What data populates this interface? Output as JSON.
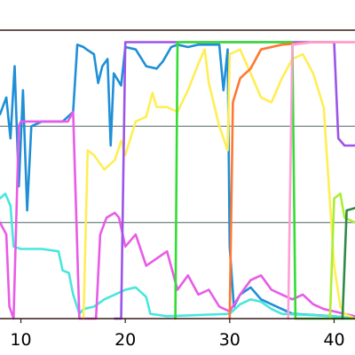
{
  "chart_data": {
    "type": "line",
    "title": "",
    "xlabel": "",
    "ylabel": "",
    "xlim": [
      8,
      42
    ],
    "ylim": [
      0,
      1.2
    ],
    "grid": "horizontal",
    "legend": "none",
    "x_ticks": [
      {
        "value": 10,
        "label": "10"
      },
      {
        "value": 20,
        "label": "20"
      },
      {
        "value": 30,
        "label": "30"
      },
      {
        "value": 40,
        "label": "40"
      }
    ],
    "y_gridlines": [
      0,
      0.4,
      0.8,
      1.2
    ],
    "series": [
      {
        "color": "#1f8fd6",
        "points": [
          [
            8,
            0.85
          ],
          [
            8.6,
            0.92
          ],
          [
            9.0,
            0.75
          ],
          [
            9.4,
            1.05
          ],
          [
            9.8,
            0.55
          ],
          [
            10.2,
            0.95
          ],
          [
            10.6,
            0.45
          ],
          [
            11,
            0.8
          ],
          [
            12,
            0.82
          ],
          [
            14,
            0.82
          ],
          [
            15,
            0.86
          ],
          [
            15.4,
            1.14
          ],
          [
            16.0,
            1.13
          ],
          [
            16.3,
            1.12
          ],
          [
            17,
            1.1
          ],
          [
            17.4,
            0.98
          ],
          [
            17.8,
            1.05
          ],
          [
            18.3,
            1.08
          ],
          [
            18.6,
            0.72
          ],
          [
            18.9,
            1.02
          ],
          [
            19.6,
            0.97
          ],
          [
            20,
            1.13
          ],
          [
            21,
            1.12
          ],
          [
            22,
            1.05
          ],
          [
            23,
            1.04
          ],
          [
            23.6,
            1.07
          ],
          [
            24.4,
            1.13
          ],
          [
            25,
            1.14
          ],
          [
            26,
            1.13
          ],
          [
            27,
            1.14
          ],
          [
            29,
            1.14
          ],
          [
            29.4,
            0.95
          ],
          [
            29.8,
            1.12
          ],
          [
            30,
            0.3
          ],
          [
            30.4,
            0.05
          ],
          [
            31,
            0.1
          ],
          [
            32,
            0.13
          ],
          [
            33,
            0.08
          ],
          [
            34,
            0.06
          ],
          [
            35,
            0.04
          ],
          [
            36,
            0.02
          ],
          [
            40,
            0.01
          ],
          [
            42,
            0
          ]
        ]
      },
      {
        "color": "#49e6dd",
        "points": [
          [
            8,
            0.5
          ],
          [
            8.5,
            0.52
          ],
          [
            9.0,
            0.47
          ],
          [
            9.3,
            0.3
          ],
          [
            10,
            0.29
          ],
          [
            12,
            0.29
          ],
          [
            13.6,
            0.28
          ],
          [
            14.0,
            0.2
          ],
          [
            14.6,
            0.19
          ],
          [
            15,
            0.1
          ],
          [
            15.6,
            0.02
          ],
          [
            16,
            0.04
          ],
          [
            17,
            0.05
          ],
          [
            18,
            0.08
          ],
          [
            19,
            0.1
          ],
          [
            20,
            0.12
          ],
          [
            21,
            0.13
          ],
          [
            22,
            0.09
          ],
          [
            22.4,
            0.02
          ],
          [
            24,
            0.01
          ],
          [
            30,
            0.02
          ],
          [
            31,
            0.06
          ],
          [
            32,
            0.08
          ],
          [
            33,
            0.07
          ],
          [
            34,
            0.04
          ],
          [
            35,
            0.02
          ],
          [
            40,
            0.01
          ],
          [
            42,
            0
          ]
        ]
      },
      {
        "color": "#e85be8",
        "points": [
          [
            8,
            0.4
          ],
          [
            8.6,
            0.35
          ],
          [
            8.9,
            0.05
          ],
          [
            9.3,
            0.0
          ],
          [
            9.8,
            0.8
          ],
          [
            10,
            0.82
          ],
          [
            14.5,
            0.82
          ],
          [
            15,
            0.86
          ],
          [
            15.6,
            0.0
          ],
          [
            16,
            0.0
          ],
          [
            17.2,
            0.0
          ],
          [
            17.6,
            0.35
          ],
          [
            18.2,
            0.42
          ],
          [
            19,
            0.44
          ],
          [
            19.4,
            0.42
          ],
          [
            20,
            0.3
          ],
          [
            21,
            0.35
          ],
          [
            22,
            0.22
          ],
          [
            23,
            0.25
          ],
          [
            24,
            0.28
          ],
          [
            25,
            0.12
          ],
          [
            26,
            0.18
          ],
          [
            27,
            0.1
          ],
          [
            28,
            0.12
          ],
          [
            29,
            0.05
          ],
          [
            30,
            0.03
          ],
          [
            31,
            0.1
          ],
          [
            32,
            0.16
          ],
          [
            33,
            0.18
          ],
          [
            34,
            0.12
          ],
          [
            35,
            0.1
          ],
          [
            36,
            0.08
          ],
          [
            37,
            0.1
          ],
          [
            38,
            0.06
          ],
          [
            39,
            0.04
          ],
          [
            40,
            0.03
          ],
          [
            41,
            0.02
          ],
          [
            42,
            0.01
          ]
        ]
      },
      {
        "color": "#ffee55",
        "points": [
          [
            16,
            0.0
          ],
          [
            16.4,
            0.7
          ],
          [
            17,
            0.68
          ],
          [
            18,
            0.62
          ],
          [
            19,
            0.66
          ],
          [
            19.6,
            0.74
          ],
          [
            20,
            0.68
          ],
          [
            21,
            0.82
          ],
          [
            22,
            0.84
          ],
          [
            22.6,
            0.94
          ],
          [
            23,
            0.88
          ],
          [
            24,
            0.88
          ],
          [
            25,
            0.86
          ],
          [
            26,
            0.95
          ],
          [
            27,
            1.06
          ],
          [
            27.6,
            1.12
          ],
          [
            28,
            0.98
          ],
          [
            29,
            0.8
          ],
          [
            29.8,
            0.7
          ],
          [
            30,
            1.1
          ],
          [
            31,
            1.12
          ],
          [
            32,
            1.02
          ],
          [
            33,
            0.92
          ],
          [
            34,
            0.9
          ],
          [
            35,
            1.0
          ],
          [
            36,
            1.08
          ],
          [
            37,
            1.1
          ],
          [
            38,
            1.02
          ],
          [
            39,
            0.88
          ],
          [
            40,
            0.22
          ],
          [
            40.6,
            0.05
          ],
          [
            41,
            0.02
          ],
          [
            42,
            0
          ]
        ]
      },
      {
        "color": "#9b55e8",
        "points": [
          [
            19,
            0.0
          ],
          [
            19.6,
            0.0
          ],
          [
            20,
            1.15
          ],
          [
            22,
            1.15
          ],
          [
            24,
            1.15
          ],
          [
            26,
            1.15
          ],
          [
            28,
            1.15
          ],
          [
            30,
            1.15
          ],
          [
            32,
            1.15
          ],
          [
            34,
            1.15
          ],
          [
            36,
            1.15
          ],
          [
            38,
            1.15
          ],
          [
            40,
            1.15
          ],
          [
            40.4,
            0.75
          ],
          [
            41,
            0.72
          ],
          [
            42,
            0.72
          ]
        ]
      },
      {
        "color": "#33dd33",
        "points": [
          [
            24.8,
            0.0
          ],
          [
            25.0,
            1.15
          ],
          [
            27,
            1.15
          ],
          [
            29,
            1.15
          ],
          [
            31,
            1.15
          ],
          [
            33,
            1.15
          ],
          [
            35,
            1.15
          ],
          [
            36,
            1.15
          ],
          [
            36.3,
            0.0
          ],
          [
            42,
            0.0
          ]
        ]
      },
      {
        "color": "#ff7733",
        "points": [
          [
            30,
            0.0
          ],
          [
            30.3,
            0.9
          ],
          [
            31,
            1.0
          ],
          [
            32,
            1.04
          ],
          [
            33,
            1.12
          ],
          [
            34,
            1.13
          ],
          [
            35,
            1.14
          ],
          [
            38,
            1.15
          ],
          [
            42,
            1.15
          ]
        ]
      },
      {
        "color": "#ff9fd5",
        "points": [
          [
            35.6,
            0.0
          ],
          [
            36,
            1.14
          ],
          [
            38,
            1.15
          ],
          [
            40,
            1.15
          ],
          [
            42,
            1.15
          ]
        ]
      },
      {
        "color": "#aaee33",
        "points": [
          [
            39.6,
            0.0
          ],
          [
            40,
            0.5
          ],
          [
            40.6,
            0.52
          ],
          [
            41,
            0.42
          ],
          [
            42,
            0.4
          ]
        ]
      },
      {
        "color": "#2f8a4a",
        "points": [
          [
            40.8,
            0.0
          ],
          [
            41.2,
            0.45
          ],
          [
            42,
            0.46
          ]
        ]
      }
    ]
  }
}
